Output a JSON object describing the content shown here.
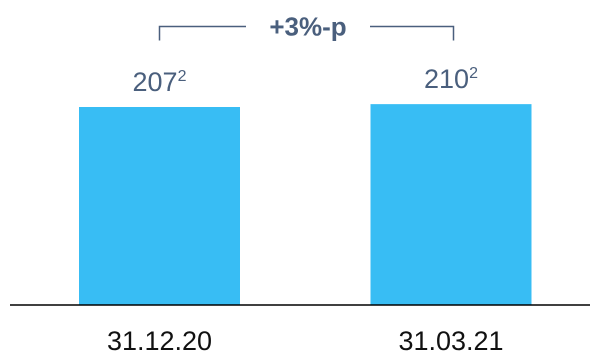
{
  "chart_data": {
    "type": "bar",
    "categories": [
      "31.12.20",
      "31.03.21"
    ],
    "values": [
      207,
      210
    ],
    "value_labels": [
      {
        "value": "207",
        "superscript": "2"
      },
      {
        "value": "210",
        "superscript": "2"
      }
    ],
    "annotation": "+3%-p",
    "title": "",
    "xlabel": "",
    "ylabel": "",
    "grid": false,
    "legend": "none",
    "colors": {
      "bar": "#38bdf4",
      "value_text": "#4a5f7d",
      "category_text": "#111111",
      "bracket": "#4a5f7d",
      "axis": "#000000"
    }
  }
}
